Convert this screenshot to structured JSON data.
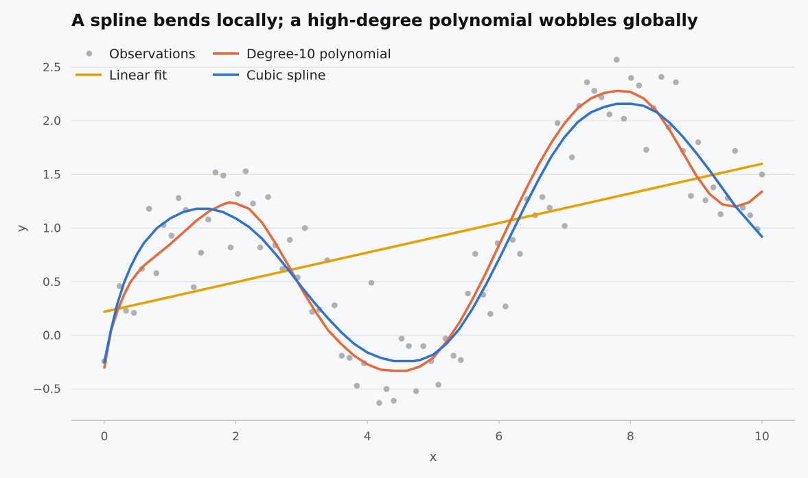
{
  "chart_data": {
    "type": "line",
    "title": "A spline bends locally; a high-degree polynomial wobbles globally",
    "xlabel": "x",
    "ylabel": "y",
    "xlim": [
      -0.5,
      10.5
    ],
    "ylim": [
      -0.8,
      2.6
    ],
    "x_ticks": [
      0,
      2,
      4,
      6,
      8,
      10
    ],
    "y_ticks": [
      -0.5,
      0.0,
      0.5,
      1.0,
      1.5,
      2.0,
      2.5
    ],
    "x_tick_labels": [
      "0",
      "2",
      "4",
      "6",
      "8",
      "10"
    ],
    "y_tick_labels": [
      "−0.5",
      "0.0",
      "0.5",
      "1.0",
      "1.5",
      "2.0",
      "2.5"
    ],
    "grid": "horizontal",
    "legend_position": "top-left",
    "series": [
      {
        "name": "Observations",
        "kind": "scatter",
        "color": "#b0b0b0",
        "points": [
          [
            0.0,
            -0.24
          ],
          [
            0.23,
            0.46
          ],
          [
            0.33,
            0.23
          ],
          [
            0.45,
            0.21
          ],
          [
            0.57,
            0.62
          ],
          [
            0.68,
            1.18
          ],
          [
            0.79,
            0.58
          ],
          [
            0.9,
            1.03
          ],
          [
            1.02,
            0.93
          ],
          [
            1.13,
            1.28
          ],
          [
            1.24,
            1.17
          ],
          [
            1.36,
            0.45
          ],
          [
            1.47,
            0.77
          ],
          [
            1.58,
            1.08
          ],
          [
            1.69,
            1.52
          ],
          [
            1.81,
            1.49
          ],
          [
            1.92,
            0.82
          ],
          [
            2.03,
            1.32
          ],
          [
            2.15,
            1.53
          ],
          [
            2.26,
            1.23
          ],
          [
            2.37,
            0.82
          ],
          [
            2.49,
            1.29
          ],
          [
            2.6,
            0.84
          ],
          [
            2.71,
            0.62
          ],
          [
            2.82,
            0.89
          ],
          [
            2.94,
            0.54
          ],
          [
            3.05,
            1.0
          ],
          [
            3.16,
            0.22
          ],
          [
            3.27,
            0.24
          ],
          [
            3.39,
            0.7
          ],
          [
            3.5,
            0.28
          ],
          [
            3.61,
            -0.19
          ],
          [
            3.73,
            -0.21
          ],
          [
            3.84,
            -0.47
          ],
          [
            3.95,
            -0.26
          ],
          [
            4.06,
            0.49
          ],
          [
            4.18,
            -0.63
          ],
          [
            4.29,
            -0.5
          ],
          [
            4.4,
            -0.61
          ],
          [
            4.52,
            -0.03
          ],
          [
            4.63,
            -0.1
          ],
          [
            4.74,
            -0.52
          ],
          [
            4.85,
            -0.1
          ],
          [
            4.97,
            -0.24
          ],
          [
            5.08,
            -0.46
          ],
          [
            5.19,
            -0.03
          ],
          [
            5.31,
            -0.19
          ],
          [
            5.42,
            -0.23
          ],
          [
            5.53,
            0.39
          ],
          [
            5.64,
            0.76
          ],
          [
            5.76,
            0.38
          ],
          [
            5.87,
            0.2
          ],
          [
            5.98,
            0.86
          ],
          [
            6.1,
            0.27
          ],
          [
            6.21,
            0.89
          ],
          [
            6.32,
            0.76
          ],
          [
            6.43,
            1.27
          ],
          [
            6.55,
            1.12
          ],
          [
            6.66,
            1.29
          ],
          [
            6.77,
            1.19
          ],
          [
            6.89,
            1.98
          ],
          [
            7.0,
            1.02
          ],
          [
            7.11,
            1.66
          ],
          [
            7.22,
            2.14
          ],
          [
            7.34,
            2.36
          ],
          [
            7.45,
            2.28
          ],
          [
            7.56,
            2.22
          ],
          [
            7.68,
            2.06
          ],
          [
            7.79,
            2.57
          ],
          [
            7.9,
            2.02
          ],
          [
            8.01,
            2.4
          ],
          [
            8.13,
            2.33
          ],
          [
            8.24,
            1.73
          ],
          [
            8.35,
            2.12
          ],
          [
            8.47,
            2.41
          ],
          [
            8.58,
            1.94
          ],
          [
            8.69,
            2.36
          ],
          [
            8.8,
            1.72
          ],
          [
            8.92,
            1.3
          ],
          [
            9.03,
            1.8
          ],
          [
            9.14,
            1.26
          ],
          [
            9.26,
            1.38
          ],
          [
            9.37,
            1.13
          ],
          [
            9.48,
            1.28
          ],
          [
            9.59,
            1.72
          ],
          [
            9.71,
            1.19
          ],
          [
            9.82,
            1.12
          ],
          [
            9.93,
            0.99
          ],
          [
            10.0,
            1.5
          ]
        ]
      },
      {
        "name": "Linear fit",
        "kind": "line",
        "color": "#e8a000",
        "points": [
          [
            0,
            0.22
          ],
          [
            10,
            1.6
          ]
        ]
      },
      {
        "name": "Degree-10 polynomial",
        "kind": "line",
        "color": "#e8683a",
        "points": [
          [
            0.0,
            -0.3
          ],
          [
            0.1,
            0.04
          ],
          [
            0.2,
            0.23
          ],
          [
            0.3,
            0.38
          ],
          [
            0.4,
            0.5
          ],
          [
            0.5,
            0.58
          ],
          [
            0.6,
            0.65
          ],
          [
            0.8,
            0.75
          ],
          [
            1.0,
            0.85
          ],
          [
            1.2,
            0.96
          ],
          [
            1.4,
            1.07
          ],
          [
            1.6,
            1.16
          ],
          [
            1.8,
            1.22
          ],
          [
            1.9,
            1.24
          ],
          [
            2.0,
            1.23
          ],
          [
            2.2,
            1.18
          ],
          [
            2.4,
            1.05
          ],
          [
            2.6,
            0.86
          ],
          [
            2.8,
            0.65
          ],
          [
            3.0,
            0.43
          ],
          [
            3.2,
            0.23
          ],
          [
            3.4,
            0.05
          ],
          [
            3.6,
            -0.08
          ],
          [
            3.8,
            -0.19
          ],
          [
            4.0,
            -0.27
          ],
          [
            4.2,
            -0.32
          ],
          [
            4.4,
            -0.33
          ],
          [
            4.5,
            -0.33
          ],
          [
            4.6,
            -0.33
          ],
          [
            4.8,
            -0.29
          ],
          [
            5.0,
            -0.21
          ],
          [
            5.2,
            -0.06
          ],
          [
            5.4,
            0.12
          ],
          [
            5.6,
            0.34
          ],
          [
            5.8,
            0.58
          ],
          [
            6.0,
            0.84
          ],
          [
            6.2,
            1.1
          ],
          [
            6.4,
            1.35
          ],
          [
            6.6,
            1.59
          ],
          [
            6.8,
            1.8
          ],
          [
            7.0,
            1.98
          ],
          [
            7.2,
            2.12
          ],
          [
            7.4,
            2.21
          ],
          [
            7.6,
            2.26
          ],
          [
            7.8,
            2.28
          ],
          [
            8.0,
            2.27
          ],
          [
            8.2,
            2.21
          ],
          [
            8.4,
            2.09
          ],
          [
            8.6,
            1.91
          ],
          [
            8.8,
            1.7
          ],
          [
            9.0,
            1.49
          ],
          [
            9.2,
            1.32
          ],
          [
            9.4,
            1.22
          ],
          [
            9.6,
            1.2
          ],
          [
            9.8,
            1.24
          ],
          [
            10.0,
            1.34
          ]
        ]
      },
      {
        "name": "Cubic spline",
        "kind": "line",
        "color": "#2f72d0",
        "points": [
          [
            0.0,
            -0.25
          ],
          [
            0.1,
            0.05
          ],
          [
            0.2,
            0.3
          ],
          [
            0.3,
            0.49
          ],
          [
            0.4,
            0.64
          ],
          [
            0.5,
            0.76
          ],
          [
            0.6,
            0.86
          ],
          [
            0.8,
            1.0
          ],
          [
            1.0,
            1.09
          ],
          [
            1.2,
            1.15
          ],
          [
            1.4,
            1.18
          ],
          [
            1.5,
            1.18
          ],
          [
            1.6,
            1.18
          ],
          [
            1.8,
            1.15
          ],
          [
            2.0,
            1.09
          ],
          [
            2.2,
            1.01
          ],
          [
            2.4,
            0.9
          ],
          [
            2.6,
            0.76
          ],
          [
            2.8,
            0.61
          ],
          [
            3.0,
            0.45
          ],
          [
            3.2,
            0.3
          ],
          [
            3.4,
            0.16
          ],
          [
            3.6,
            0.03
          ],
          [
            3.8,
            -0.08
          ],
          [
            4.0,
            -0.16
          ],
          [
            4.2,
            -0.21
          ],
          [
            4.4,
            -0.24
          ],
          [
            4.6,
            -0.24
          ],
          [
            4.7,
            -0.24
          ],
          [
            4.8,
            -0.23
          ],
          [
            5.0,
            -0.18
          ],
          [
            5.2,
            -0.08
          ],
          [
            5.4,
            0.06
          ],
          [
            5.6,
            0.25
          ],
          [
            5.8,
            0.47
          ],
          [
            6.0,
            0.71
          ],
          [
            6.2,
            0.96
          ],
          [
            6.4,
            1.21
          ],
          [
            6.6,
            1.45
          ],
          [
            6.8,
            1.67
          ],
          [
            7.0,
            1.85
          ],
          [
            7.2,
            1.99
          ],
          [
            7.4,
            2.08
          ],
          [
            7.6,
            2.13
          ],
          [
            7.8,
            2.16
          ],
          [
            8.0,
            2.16
          ],
          [
            8.2,
            2.14
          ],
          [
            8.4,
            2.08
          ],
          [
            8.6,
            1.98
          ],
          [
            8.8,
            1.85
          ],
          [
            9.0,
            1.7
          ],
          [
            9.2,
            1.54
          ],
          [
            9.4,
            1.37
          ],
          [
            9.6,
            1.2
          ],
          [
            9.8,
            1.06
          ],
          [
            10.0,
            0.92
          ]
        ]
      }
    ]
  }
}
